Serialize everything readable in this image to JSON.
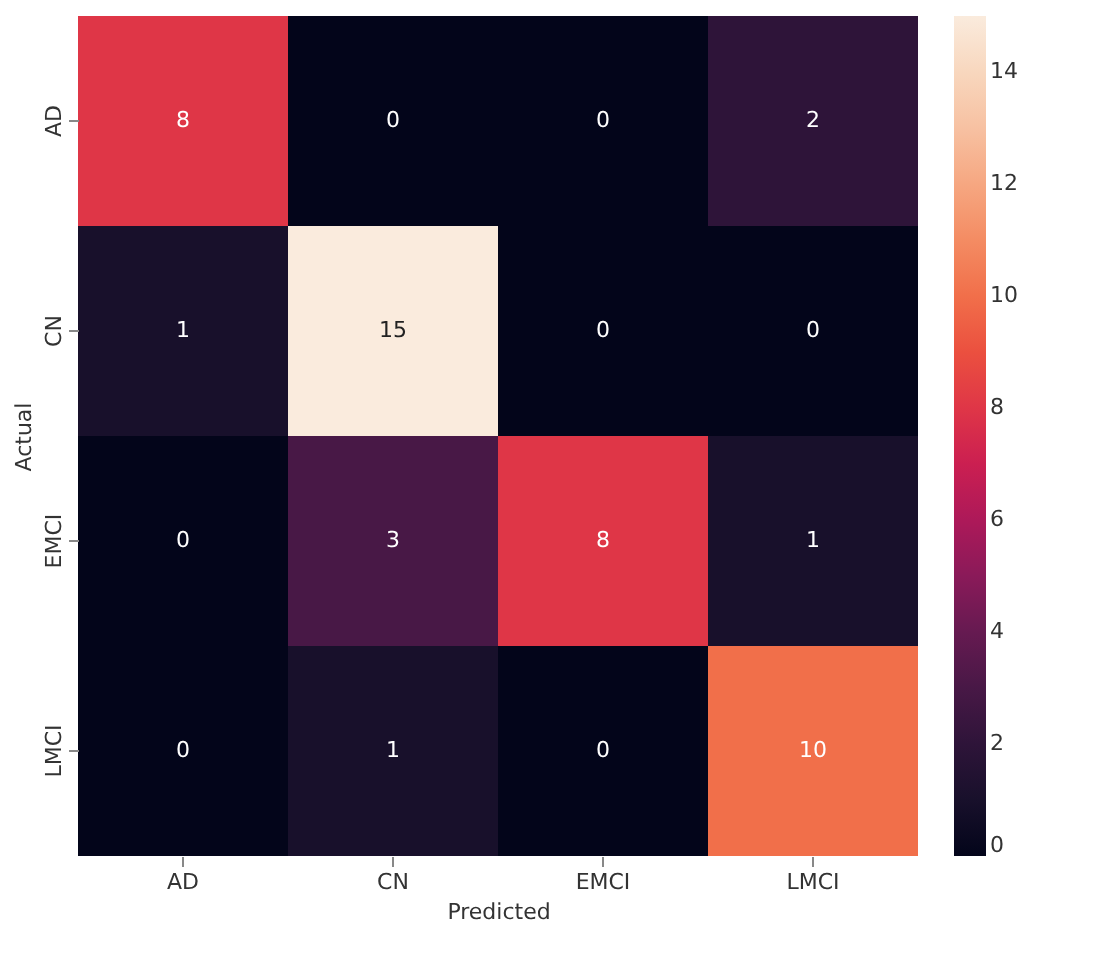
{
  "chart_data": {
    "type": "heatmap",
    "xlabel": "Predicted",
    "ylabel": "Actual",
    "categories": [
      "AD",
      "CN",
      "EMCI",
      "LMCI"
    ],
    "y_categories": [
      "AD",
      "CN",
      "EMCI",
      "LMCI"
    ],
    "cells": [
      [
        8,
        0,
        0,
        2
      ],
      [
        1,
        15,
        0,
        0
      ],
      [
        0,
        3,
        8,
        1
      ],
      [
        0,
        1,
        0,
        10
      ]
    ],
    "data_labels": true,
    "clim": [
      0,
      15
    ],
    "cticks": [
      0,
      2,
      4,
      6,
      8,
      10,
      12,
      14
    ]
  }
}
